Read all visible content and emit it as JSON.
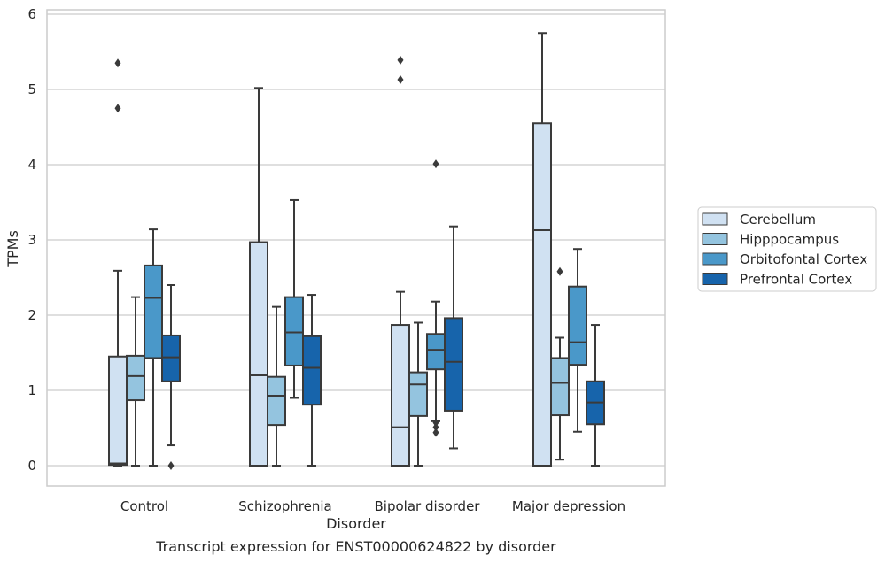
{
  "chart_data": {
    "type": "box",
    "title": "Transcript expression for ENST00000624822 by disorder",
    "xlabel": "Disorder",
    "ylabel": "TPMs",
    "ylim": [
      -0.27,
      6.05
    ],
    "yticks": [
      0,
      1,
      2,
      3,
      4,
      5,
      6
    ],
    "categories": [
      "Control",
      "Schizophrenia",
      "Bipolar disorder",
      "Major depression"
    ],
    "grid": true,
    "legend_position": "right",
    "series": [
      {
        "name": "Cerebellum",
        "color": "#d0e1f2",
        "boxes": [
          {
            "q1": 0.01,
            "median": 0.03,
            "q3": 1.45,
            "whisker_low": 0.0,
            "whisker_high": 2.59,
            "outliers": [
              4.75,
              5.35
            ]
          },
          {
            "q1": 0.0,
            "median": 1.2,
            "q3": 2.97,
            "whisker_low": 0.0,
            "whisker_high": 5.02,
            "outliers": []
          },
          {
            "q1": 0.0,
            "median": 0.51,
            "q3": 1.87,
            "whisker_low": 0.0,
            "whisker_high": 2.31,
            "outliers": [
              5.13,
              5.39
            ]
          },
          {
            "q1": 0.0,
            "median": 3.13,
            "q3": 4.55,
            "whisker_low": 0.0,
            "whisker_high": 5.75,
            "outliers": []
          }
        ]
      },
      {
        "name": "Hipppocampus",
        "color": "#94c4df",
        "boxes": [
          {
            "q1": 0.87,
            "median": 1.19,
            "q3": 1.46,
            "whisker_low": 0.0,
            "whisker_high": 2.24,
            "outliers": []
          },
          {
            "q1": 0.54,
            "median": 0.93,
            "q3": 1.18,
            "whisker_low": 0.0,
            "whisker_high": 2.11,
            "outliers": []
          },
          {
            "q1": 0.66,
            "median": 1.08,
            "q3": 1.24,
            "whisker_low": 0.0,
            "whisker_high": 1.9,
            "outliers": []
          },
          {
            "q1": 0.67,
            "median": 1.1,
            "q3": 1.43,
            "whisker_low": 0.08,
            "whisker_high": 1.7,
            "outliers": [
              2.58
            ]
          }
        ]
      },
      {
        "name": "Orbitofontal Cortex",
        "color": "#4a98c9",
        "boxes": [
          {
            "q1": 1.43,
            "median": 2.23,
            "q3": 2.66,
            "whisker_low": 0.0,
            "whisker_high": 3.14,
            "outliers": []
          },
          {
            "q1": 1.33,
            "median": 1.77,
            "q3": 2.24,
            "whisker_low": 0.9,
            "whisker_high": 3.53,
            "outliers": []
          },
          {
            "q1": 1.28,
            "median": 1.54,
            "q3": 1.75,
            "whisker_low": 0.59,
            "whisker_high": 2.18,
            "outliers": [
              0.44,
              0.51,
              0.57,
              4.01
            ]
          },
          {
            "q1": 1.34,
            "median": 1.64,
            "q3": 2.38,
            "whisker_low": 0.45,
            "whisker_high": 2.88,
            "outliers": []
          }
        ]
      },
      {
        "name": "Prefrontal Cortex",
        "color": "#1764ab",
        "boxes": [
          {
            "q1": 1.12,
            "median": 1.44,
            "q3": 1.73,
            "whisker_low": 0.27,
            "whisker_high": 2.4,
            "outliers": [
              0.0
            ]
          },
          {
            "q1": 0.81,
            "median": 1.3,
            "q3": 1.72,
            "whisker_low": 0.0,
            "whisker_high": 2.27,
            "outliers": []
          },
          {
            "q1": 0.73,
            "median": 1.38,
            "q3": 1.96,
            "whisker_low": 0.23,
            "whisker_high": 3.18,
            "outliers": []
          },
          {
            "q1": 0.55,
            "median": 0.84,
            "q3": 1.12,
            "whisker_low": 0.0,
            "whisker_high": 1.87,
            "outliers": []
          }
        ]
      }
    ]
  }
}
